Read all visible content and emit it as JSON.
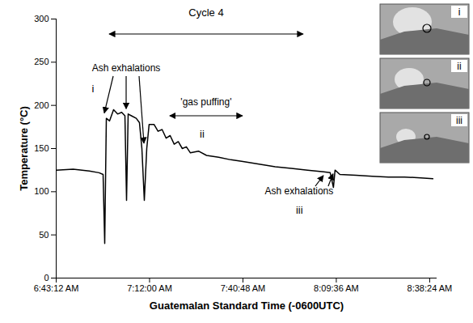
{
  "chart_data": {
    "type": "line",
    "x_label": "Guatemalan Standard Time (-0600UTC)",
    "y_label": "Temperature (°C)",
    "color": "#000000",
    "x": [
      24192,
      24506,
      24805,
      24985,
      25060,
      25090,
      25120,
      25180,
      25254,
      25329,
      25404,
      25464,
      25494,
      25524,
      25583,
      25673,
      25733,
      25778,
      25823,
      25868,
      25912,
      26002,
      26077,
      26152,
      26227,
      26301,
      26376,
      26451,
      26526,
      26601,
      26676,
      26825,
      26975,
      27199,
      27423,
      27648,
      27947,
      28246,
      28545,
      28845,
      29144,
      29263,
      29323,
      29353,
      29442,
      29742,
      30041,
      30341,
      30640,
      30939,
      31163
    ],
    "values": [
      125,
      126,
      124,
      122,
      120,
      40,
      185,
      182,
      195,
      190,
      192,
      188,
      90,
      190,
      188,
      185,
      180,
      150,
      90,
      150,
      178,
      178,
      170,
      172,
      162,
      165,
      155,
      158,
      150,
      152,
      145,
      147,
      142,
      140,
      137,
      135,
      132,
      129,
      127,
      125,
      123,
      122,
      105,
      125,
      120,
      119,
      118,
      117,
      117,
      116,
      115
    ],
    "xlim": [
      24192,
      31240
    ],
    "xticks": [
      {
        "value": 24192,
        "label": "6:43:12 AM"
      },
      {
        "value": 25920,
        "label": "7:12:00 AM"
      },
      {
        "value": 27648,
        "label": "7:40:48 AM"
      },
      {
        "value": 29376,
        "label": "8:09:36 AM"
      },
      {
        "value": 31104,
        "label": "8:38:24 AM"
      }
    ],
    "ylim": [
      0,
      300
    ],
    "yticks": [
      0,
      50,
      100,
      150,
      200,
      250,
      300
    ],
    "annotations": [
      {
        "text": "Cycle 4",
        "span": [
          25180,
          28770
        ]
      },
      {
        "text": "Ash exhalations",
        "targets": [
          25090,
          25494,
          25823
        ]
      },
      {
        "text": "'gas puffing'",
        "span": [
          26301,
          27647
        ]
      },
      {
        "text": "Ash exhalations",
        "targets": [
          29144,
          29323
        ]
      },
      {
        "text": "i",
        "at": 25060
      },
      {
        "text": "ii",
        "at": 26900
      },
      {
        "text": "iii",
        "at": 28700
      }
    ],
    "insets": [
      "i",
      "ii",
      "iii"
    ]
  }
}
